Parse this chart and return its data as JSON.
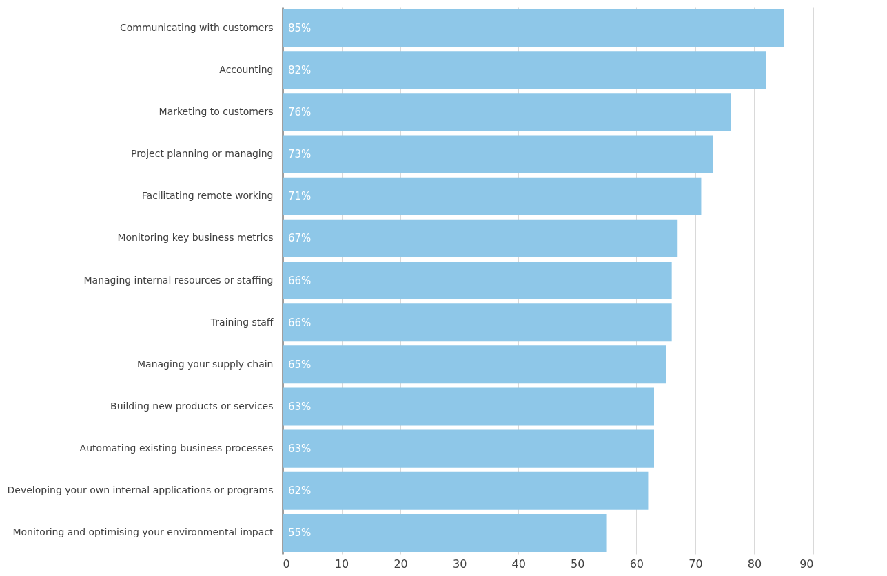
{
  "chart_data": {
    "type": "bar",
    "orientation": "horizontal",
    "categories": [
      "Communicating with customers",
      "Accounting",
      "Marketing to customers",
      "Project planning or managing",
      "Facilitating remote working",
      "Monitoring key business metrics",
      "Managing internal resources or staffing",
      "Training staff",
      "Managing your supply chain",
      "Building new products or services",
      "Automating existing business processes",
      "Developing your own internal applications or programs",
      "Monitoring and optimising your environmental impact"
    ],
    "values": [
      85,
      82,
      76,
      73,
      71,
      67,
      66,
      66,
      65,
      63,
      63,
      62,
      55
    ],
    "value_labels": [
      "85%",
      "82%",
      "76%",
      "73%",
      "71%",
      "67%",
      "66%",
      "66%",
      "65%",
      "63%",
      "63%",
      "62%",
      "55%"
    ],
    "color": "#8ec7e8",
    "xlim": [
      0,
      90
    ],
    "xticks": [
      0,
      10,
      20,
      30,
      40,
      50,
      60,
      70,
      80,
      90
    ],
    "grid": "x"
  }
}
